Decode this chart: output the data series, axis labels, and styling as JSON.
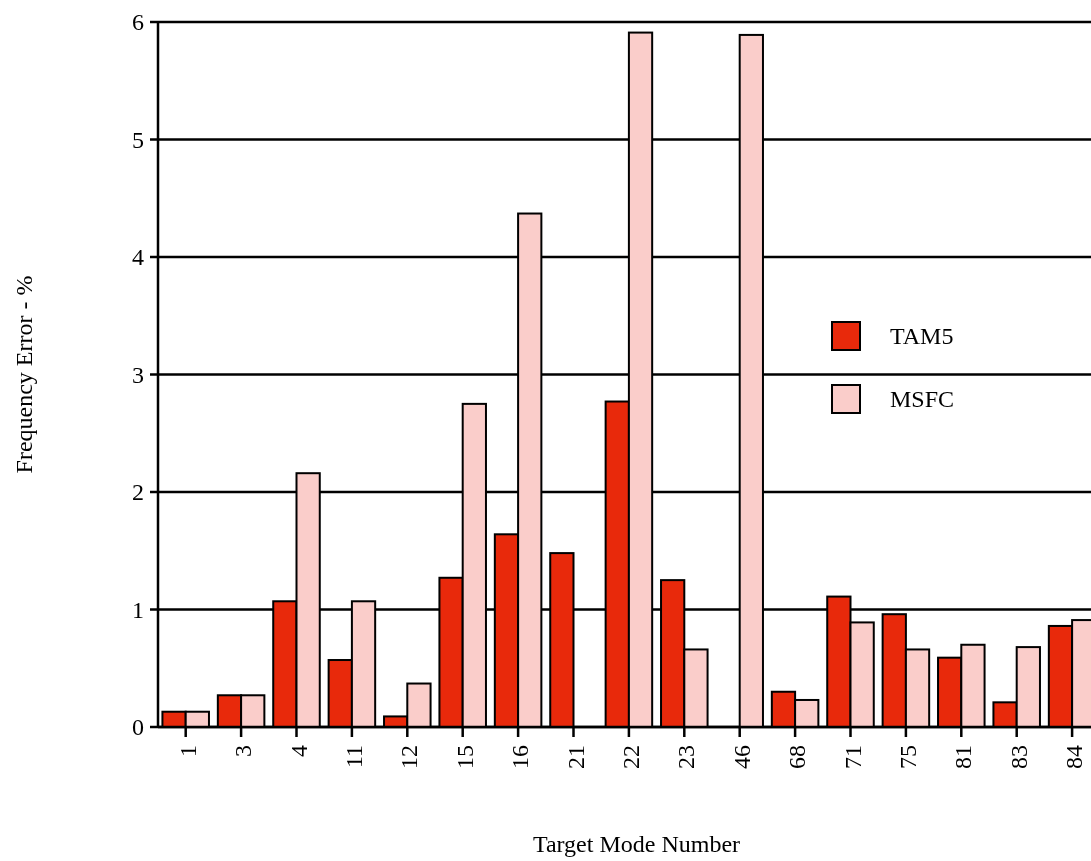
{
  "chart_data": {
    "type": "bar",
    "xlabel": "Target Mode Number",
    "ylabel": "Frequency Error - %",
    "categories": [
      "1",
      "3",
      "4",
      "11",
      "12",
      "15",
      "16",
      "21",
      "22",
      "23",
      "46",
      "68",
      "71",
      "75",
      "81",
      "83",
      "84"
    ],
    "series": [
      {
        "name": "TAM5",
        "color": "#e8290b",
        "values": [
          0.13,
          0.27,
          1.07,
          0.57,
          0.09,
          1.27,
          1.64,
          1.48,
          2.77,
          1.25,
          null,
          0.3,
          1.11,
          0.96,
          0.59,
          0.21,
          0.86
        ]
      },
      {
        "name": "MSFC",
        "color": "#facdca",
        "values": [
          0.13,
          0.27,
          2.16,
          1.07,
          0.37,
          2.75,
          4.37,
          null,
          5.91,
          0.66,
          5.89,
          0.23,
          0.89,
          0.66,
          0.7,
          0.68,
          0.91
        ]
      }
    ],
    "ylim": [
      0,
      6
    ],
    "yticks": [
      0,
      1,
      2,
      3,
      4,
      5,
      6
    ],
    "grid": "y",
    "legend": "right"
  }
}
